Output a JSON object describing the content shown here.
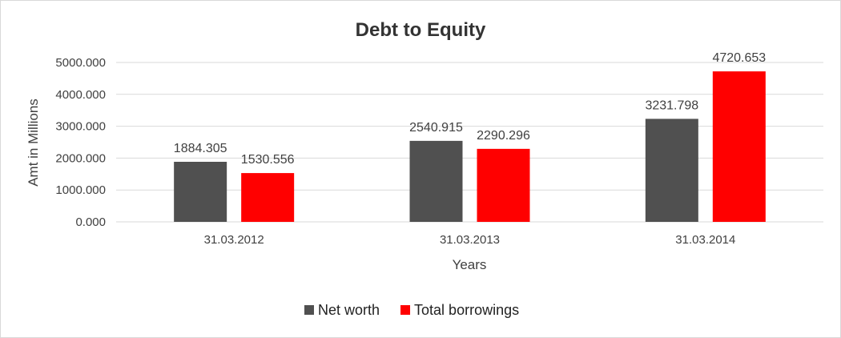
{
  "chart_data": {
    "type": "bar",
    "title": "Debt to Equity",
    "xlabel": "Years",
    "ylabel": "Amt in Millions",
    "categories": [
      "31.03.2012",
      "31.03.2013",
      "31.03.2014"
    ],
    "series": [
      {
        "name": "Net worth",
        "color": "#505050",
        "values": [
          1884.305,
          2540.915,
          3231.798
        ],
        "labels": [
          "1884.305",
          "2540.915",
          "3231.798"
        ]
      },
      {
        "name": "Total borrowings",
        "color": "#ff0000",
        "values": [
          1530.556,
          2290.296,
          4720.653
        ],
        "labels": [
          "1530.556",
          "2290.296",
          "4720.653"
        ]
      }
    ],
    "ylim": [
      0,
      5000
    ],
    "yticks": [
      "0.000",
      "1000.000",
      "2000.000",
      "3000.000",
      "4000.000",
      "5000.000"
    ],
    "grid": true,
    "legend_position": "bottom"
  }
}
